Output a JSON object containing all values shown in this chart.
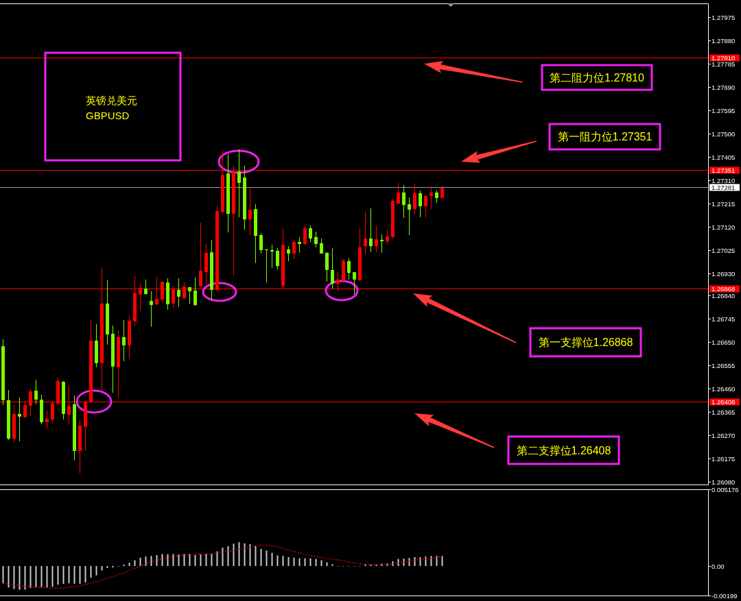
{
  "chart_data": [
    {
      "type": "candlestick",
      "title": "英镑兑美元",
      "subtitle": "GBPUSD",
      "tick_labels": "y",
      "categories": [
        null,
        null,
        null,
        null,
        null,
        null,
        null,
        null,
        null,
        null,
        null,
        null,
        null,
        null,
        null,
        null,
        null,
        null,
        null,
        null,
        null,
        null,
        null,
        null,
        null,
        null,
        null,
        null,
        null,
        null,
        null,
        null,
        null,
        null,
        null,
        null,
        null,
        null,
        null,
        null,
        null,
        null,
        null,
        null,
        null,
        null,
        null,
        null,
        null,
        null,
        null,
        null,
        null,
        null,
        null,
        null,
        null,
        null,
        null,
        null,
        null,
        null,
        null,
        null,
        null,
        null,
        null,
        null,
        null,
        null,
        null,
        null,
        null,
        null,
        null,
        null,
        null,
        null,
        null,
        null,
        null,
        null,
        null,
        null,
        null,
        null,
        null,
        null,
        null,
        null,
        null,
        null,
        null,
        null,
        null,
        null,
        null,
        null,
        null,
        null,
        null,
        null,
        null,
        null,
        null,
        null,
        null,
        null,
        null,
        null,
        null,
        null,
        null,
        null,
        null,
        null,
        null,
        null,
        null,
        null,
        null,
        null,
        null,
        null,
        null,
        null,
        null,
        null,
        null
      ],
      "ohlc": [
        [
          1.26633,
          1.26661,
          1.26393,
          1.26413
        ],
        [
          1.26413,
          1.26455,
          1.26251,
          1.26256
        ],
        [
          1.26256,
          1.26393,
          1.26242,
          1.26357
        ],
        [
          1.26357,
          1.26424,
          1.26245,
          1.26346
        ],
        [
          1.26343,
          1.2641,
          1.26343,
          1.26393
        ],
        [
          1.2639,
          1.2646,
          1.26348,
          1.26449
        ],
        [
          1.26452,
          1.26496,
          1.26396,
          1.26415
        ],
        [
          1.26415,
          1.26435,
          1.26315,
          1.26323
        ],
        [
          1.26323,
          1.26371,
          1.26295,
          1.26337
        ],
        [
          1.26334,
          1.2641,
          1.26318,
          1.26401
        ],
        [
          1.26399,
          1.26505,
          1.26393,
          1.26491
        ],
        [
          1.26488,
          1.26491,
          1.26334,
          1.26357
        ],
        [
          1.26354,
          1.26471,
          1.26312,
          1.2639
        ],
        [
          1.26396,
          1.26432,
          1.26167,
          1.26206
        ],
        [
          1.26206,
          1.26332,
          1.26114,
          1.26309
        ],
        [
          1.26304,
          1.2641,
          1.26206,
          1.26404
        ],
        [
          1.26404,
          1.26742,
          1.26401,
          1.26656
        ],
        [
          1.26656,
          1.26723,
          1.26547,
          1.26564
        ],
        [
          1.26564,
          1.26955,
          1.26446,
          1.26807
        ],
        [
          1.26807,
          1.26902,
          1.26639,
          1.26681
        ],
        [
          1.26684,
          1.26717,
          1.26443,
          1.2655
        ],
        [
          1.26547,
          1.26698,
          1.26421,
          1.2667
        ],
        [
          1.2667,
          1.2674,
          1.26572,
          1.26636
        ],
        [
          1.26636,
          1.26759,
          1.2658,
          1.26737
        ],
        [
          1.26734,
          1.26919,
          1.26714,
          1.26849
        ],
        [
          1.26843,
          1.26891,
          1.26776,
          1.26871
        ],
        [
          1.26868,
          1.26905,
          1.26843,
          1.26846
        ],
        [
          1.26818,
          1.26857,
          1.26712,
          1.26801
        ],
        [
          1.26804,
          1.26916,
          1.26798,
          1.26826
        ],
        [
          1.26823,
          1.26896,
          1.26812,
          1.26896
        ],
        [
          1.26893,
          1.2691,
          1.26782,
          1.26804
        ],
        [
          1.26807,
          1.26879,
          1.2679,
          1.26865
        ],
        [
          1.26863,
          1.2691,
          1.26793,
          1.26835
        ],
        [
          1.26829,
          1.26893,
          1.26826,
          1.26877
        ],
        [
          1.26874,
          1.26874,
          1.26804,
          1.26857
        ],
        [
          1.2686,
          1.26913,
          1.26798,
          1.26801
        ],
        [
          1.26877,
          1.27137,
          1.26877,
          1.26941
        ],
        [
          1.26935,
          1.2705,
          1.26885,
          1.27014
        ],
        [
          1.27016,
          1.27067,
          1.26821,
          1.26863
        ],
        [
          1.26863,
          1.27206,
          1.26854,
          1.27184
        ],
        [
          1.27181,
          1.27433,
          1.27173,
          1.27332
        ],
        [
          1.27338,
          1.27416,
          1.27097,
          1.27173
        ],
        [
          1.27173,
          1.27371,
          1.26921,
          1.27343
        ],
        [
          1.27346,
          1.27436,
          1.27159,
          1.27299
        ],
        [
          1.27321,
          1.27369,
          1.27109,
          1.2715
        ],
        [
          1.2715,
          1.27282,
          1.27086,
          1.2719
        ],
        [
          1.27192,
          1.27212,
          1.26972,
          1.27083
        ],
        [
          1.27086,
          1.27095,
          1.27011,
          1.27025
        ],
        [
          1.27028,
          1.27028,
          1.26893,
          1.27025
        ],
        [
          1.27025,
          1.27047,
          1.26952,
          1.27019
        ],
        [
          1.27022,
          1.27033,
          1.26946,
          1.2696
        ],
        [
          1.26879,
          1.27114,
          1.26865,
          1.27047
        ],
        [
          1.27028,
          1.27041,
          1.2698,
          1.27011
        ],
        [
          1.27011,
          1.27067,
          1.26988,
          1.27058
        ],
        [
          1.27058,
          1.27078,
          1.27014,
          1.2705
        ],
        [
          1.2705,
          1.27125,
          1.27047,
          1.27114
        ],
        [
          1.27114,
          1.27125,
          1.27058,
          1.27072
        ],
        [
          1.27078,
          1.271,
          1.27036,
          1.2705
        ],
        [
          1.27053,
          1.27072,
          1.27011,
          1.27011
        ],
        [
          1.27014,
          1.27016,
          1.26896,
          1.26944
        ],
        [
          1.26944,
          1.27033,
          1.26868,
          1.26888
        ],
        [
          1.26888,
          1.26935,
          1.26857,
          1.26905
        ],
        [
          1.26899,
          1.26988,
          1.26899,
          1.26983
        ],
        [
          1.2698,
          1.26991,
          1.26905,
          1.26932
        ],
        [
          1.26935,
          1.26935,
          1.26843,
          1.26905
        ],
        [
          1.26902,
          1.27114,
          1.26899,
          1.27036
        ],
        [
          1.27041,
          1.27181,
          1.27008,
          1.27072
        ],
        [
          1.27072,
          1.27195,
          1.27016,
          1.27041
        ],
        [
          1.27041,
          1.27125,
          1.27016,
          1.27069
        ],
        [
          1.27067,
          1.27089,
          1.27014,
          1.27061
        ],
        [
          1.27061,
          1.27109,
          1.27047,
          1.27081
        ],
        [
          1.27078,
          1.27234,
          1.27072,
          1.27226
        ],
        [
          1.27215,
          1.27299,
          1.27212,
          1.2726
        ],
        [
          1.2726,
          1.2729,
          1.27156,
          1.27209
        ],
        [
          1.27212,
          1.2724,
          1.27086,
          1.2719
        ],
        [
          1.27192,
          1.27296,
          1.2717,
          1.27257
        ],
        [
          1.27257,
          1.27268,
          1.27159,
          1.27204
        ],
        [
          1.27204,
          1.27248,
          1.27156,
          1.27246
        ],
        [
          1.27246,
          1.27285,
          1.27192,
          1.2726
        ],
        [
          1.2726,
          1.27268,
          1.27218,
          1.27237
        ],
        [
          1.27237,
          1.27287,
          1.27237,
          1.27279
        ],
        null,
        null,
        null,
        null,
        null,
        null,
        null,
        null,
        null,
        null,
        null,
        null,
        null,
        null,
        null,
        null,
        null,
        null,
        null,
        null,
        null,
        null,
        null,
        null,
        null,
        null,
        null,
        null,
        null,
        null,
        null,
        null,
        null,
        null,
        null,
        null,
        null,
        null,
        null,
        null,
        null,
        null,
        null,
        null,
        null,
        null,
        null,
        null
      ],
      "colors": [
        "#7cfc00",
        "#7cfc00",
        "#ff0000",
        "#7cfc00",
        "#ff0000",
        "#ff0000",
        "#7cfc00",
        "#7cfc00",
        "#ff0000",
        "#ff0000",
        "#ff0000",
        "#7cfc00",
        "#ff0000",
        "#7cfc00",
        "#ff0000",
        "#ff0000",
        "#ff0000",
        "#7cfc00",
        "#ff0000",
        "#7cfc00",
        "#7cfc00",
        "#ff0000",
        "#7cfc00",
        "#ff0000",
        "#ff0000",
        "#ff0000",
        "#7cfc00",
        "#7cfc00",
        "#ff0000",
        "#ff0000",
        "#7cfc00",
        "#ff0000",
        "#7cfc00",
        "#ff0000",
        "#7cfc00",
        "#7cfc00",
        "#ff0000",
        "#ff0000",
        "#7cfc00",
        "#ff0000",
        "#ff0000",
        "#7cfc00",
        "#ff0000",
        "#7cfc00",
        "#7cfc00",
        "#ff0000",
        "#7cfc00",
        "#7cfc00",
        "#7cfc00",
        "#7cfc00",
        "#7cfc00",
        "#ff0000",
        "#7cfc00",
        "#ff0000",
        "#7cfc00",
        "#ff0000",
        "#7cfc00",
        "#7cfc00",
        "#7cfc00",
        "#7cfc00",
        "#7cfc00",
        "#ff0000",
        "#ff0000",
        "#7cfc00",
        "#7cfc00",
        "#ff0000",
        "#ff0000",
        "#7cfc00",
        "#ff0000",
        "#7cfc00",
        "#ff0000",
        "#ff0000",
        "#ff0000",
        "#7cfc00",
        "#7cfc00",
        "#ff0000",
        "#7cfc00",
        "#ff0000",
        "#ff0000",
        "#7cfc00",
        "#ff0000",
        null,
        null,
        null,
        null,
        null,
        null,
        null,
        null,
        null,
        null,
        null,
        null,
        null,
        null,
        null,
        null,
        null,
        null,
        null,
        null,
        null,
        null,
        null,
        null,
        null,
        null,
        null,
        null,
        null,
        null,
        null,
        null,
        null,
        null,
        null,
        null,
        null,
        null,
        null,
        null,
        null,
        null,
        null,
        null,
        null,
        null,
        null,
        null
      ],
      "ylim": [
        1.26069,
        1.28031
      ],
      "yticks": [
        {
          "value": 1.2608,
          "label": "1.26080"
        },
        1.26175,
        {
          "value": 1.2627,
          "label": "1.26270"
        },
        1.26365,
        {
          "value": 1.2646,
          "label": "1.26460"
        },
        1.26555,
        {
          "value": 1.2665,
          "label": "1.26650"
        },
        1.26745,
        {
          "value": 1.2684,
          "label": "1.26840"
        },
        {
          "value": 1.2693,
          "label": "1.26930"
        },
        1.27025,
        {
          "value": 1.2712,
          "label": "1.27120"
        },
        1.27215,
        {
          "value": 1.2731,
          "label": "1.27310"
        },
        1.27405,
        {
          "value": 1.275,
          "label": "1.27500"
        },
        1.27595,
        {
          "value": 1.2769,
          "label": "1.27690"
        },
        1.27785,
        {
          "value": 1.2788,
          "label": "1.27880"
        },
        1.27975
      ],
      "ref_lines": [
        {
          "axis": "y",
          "value": 1.2781,
          "label": "1.27810",
          "color": "#ff0000"
        },
        {
          "axis": "y",
          "value": 1.27351,
          "label": "1.27351",
          "color": "#ff0000"
        },
        {
          "axis": "y",
          "value": 1.27281,
          "label": "1.27281",
          "color": "#8c9cae"
        },
        {
          "axis": "y",
          "value": 1.26868,
          "label": "1.26868",
          "color": "#ff0000"
        },
        {
          "axis": "y",
          "value": 1.26408,
          "label": "1.26408",
          "color": "#ff0000"
        }
      ],
      "annotations": [
        "第二阻力位1.27810",
        "第一阻力位1.27351",
        "第一支撑位1.26868",
        "第二支撑位1.26408"
      ]
    },
    {
      "type": "bar",
      "tick_labels": "y",
      "categories": [
        null,
        null,
        null,
        null,
        null,
        null,
        null,
        null,
        null,
        null,
        null,
        null,
        null,
        null,
        null,
        null,
        null,
        null,
        null,
        null,
        null,
        null,
        null,
        null,
        null,
        null,
        null,
        null,
        null,
        null,
        null,
        null,
        null,
        null,
        null,
        null,
        null,
        null,
        null,
        null,
        null,
        null,
        null,
        null,
        null,
        null,
        null,
        null,
        null,
        null,
        null,
        null,
        null,
        null,
        null,
        null,
        null,
        null,
        null,
        null,
        null,
        null,
        null,
        null,
        null,
        null,
        null,
        null,
        null,
        null,
        null,
        null,
        null,
        null,
        null,
        null,
        null,
        null,
        null,
        null,
        null,
        null,
        null,
        null,
        null,
        null,
        null,
        null,
        null,
        null,
        null,
        null,
        null,
        null,
        null,
        null,
        null,
        null,
        null,
        null,
        null,
        null,
        null,
        null,
        null,
        null,
        null,
        null,
        null,
        null,
        null,
        null,
        null,
        null,
        null,
        null,
        null,
        null,
        null,
        null,
        null,
        null,
        null,
        null,
        null,
        null,
        null,
        null,
        null
      ],
      "series": [
        {
          "type": "bar",
          "color": "#c8c8c8",
          "values": [
            -0.00116,
            -0.00145,
            -0.00155,
            -0.00161,
            -0.00159,
            -0.00149,
            -0.00145,
            -0.00145,
            -0.00145,
            -0.0014,
            -0.00126,
            -0.0012,
            -0.00116,
            -0.0012,
            -0.0012,
            -0.00111,
            -0.00078,
            -0.00063,
            -0.0003,
            -0.00013,
            -0.0001,
            0,
            0.0001,
            0.00022,
            0.00039,
            0.00056,
            0.00064,
            0.00068,
            0.00074,
            0.00081,
            0.0008,
            0.00081,
            0.00078,
            0.00081,
            0.0008,
            0.00074,
            0.00078,
            0.00081,
            0.00081,
            0.00099,
            0.00124,
            0.00134,
            0.00151,
            0.00161,
            0.00153,
            0.00147,
            0.00134,
            0.00116,
            0.00105,
            0.00089,
            0.00072,
            0.00068,
            0.0006,
            0.00056,
            0.00052,
            0.00052,
            0.00052,
            0.00048,
            0.00039,
            0.00025,
            0.00012,
            0,
            0,
            0,
            0,
            0,
            0.0001,
            0.0001,
            0.0001,
            0.00016,
            0.00017,
            0.00033,
            0.00048,
            0.0005,
            0.00054,
            0.0006,
            0.0006,
            0.00064,
            0.00068,
            0.00068,
            0.00068,
            null,
            null,
            null,
            null,
            null,
            null,
            null,
            null,
            null,
            null,
            null,
            null,
            null,
            null,
            null,
            null,
            null,
            null,
            null,
            null,
            null,
            null,
            null,
            null,
            null,
            null,
            null,
            null,
            null,
            null,
            null,
            null,
            null,
            null,
            null,
            null,
            null,
            null,
            null,
            null,
            null,
            null,
            null,
            null,
            null,
            null,
            null,
            null
          ]
        },
        {
          "type": "line",
          "color": "#ff0000",
          "line_style": "dotted",
          "values": [
            -0.00116,
            -0.00122,
            -0.00126,
            -0.0013,
            -0.00138,
            -0.00142,
            -0.00142,
            -0.00142,
            -0.00145,
            -0.00151,
            -0.00149,
            -0.00149,
            -0.00142,
            -0.00138,
            -0.00132,
            -0.00126,
            -0.00116,
            -0.00105,
            -0.00095,
            -0.00083,
            -0.00072,
            -0.00058,
            -0.00045,
            -0.00031,
            -0.00016,
            0,
            0.00014,
            0.00027,
            0.00039,
            0.00048,
            0.00056,
            0.00064,
            0.0007,
            0.00074,
            0.00078,
            0.0008,
            0.0008,
            0.0008,
            0.00081,
            0.00087,
            0.00093,
            0.00097,
            0.00103,
            0.00114,
            0.00122,
            0.00128,
            0.00138,
            0.00142,
            0.0014,
            0.00136,
            0.0013,
            0.00118,
            0.00107,
            0.00099,
            0.00089,
            0.0008,
            0.00072,
            0.00064,
            0.00058,
            0.0005,
            0.00045,
            0.00041,
            0.00035,
            0.00027,
            0.00021,
            0.00016,
            0.00012,
            0.0001,
            0.0001,
            0.0001,
            0.0001,
            0.00014,
            0.00019,
            0.00027,
            0.00033,
            0.00039,
            0.00045,
            0.00048,
            0.00052,
            0.00056,
            0.00064,
            null,
            null,
            null,
            null,
            null,
            null,
            null,
            null,
            null,
            null,
            null,
            null,
            null,
            null,
            null,
            null,
            null,
            null,
            null,
            null,
            null,
            null,
            null,
            null,
            null,
            null,
            null,
            null,
            null,
            null,
            null,
            null,
            null,
            null,
            null,
            null,
            null,
            null,
            null,
            null,
            null,
            null,
            null,
            null,
            null,
            null,
            null,
            null
          ]
        }
      ],
      "ylim": [
        -0.00199,
        0.005176
      ],
      "yticks": [
        -0.00199,
        {
          "value": 0,
          "label": "0.00"
        },
        0.005176
      ]
    }
  ]
}
